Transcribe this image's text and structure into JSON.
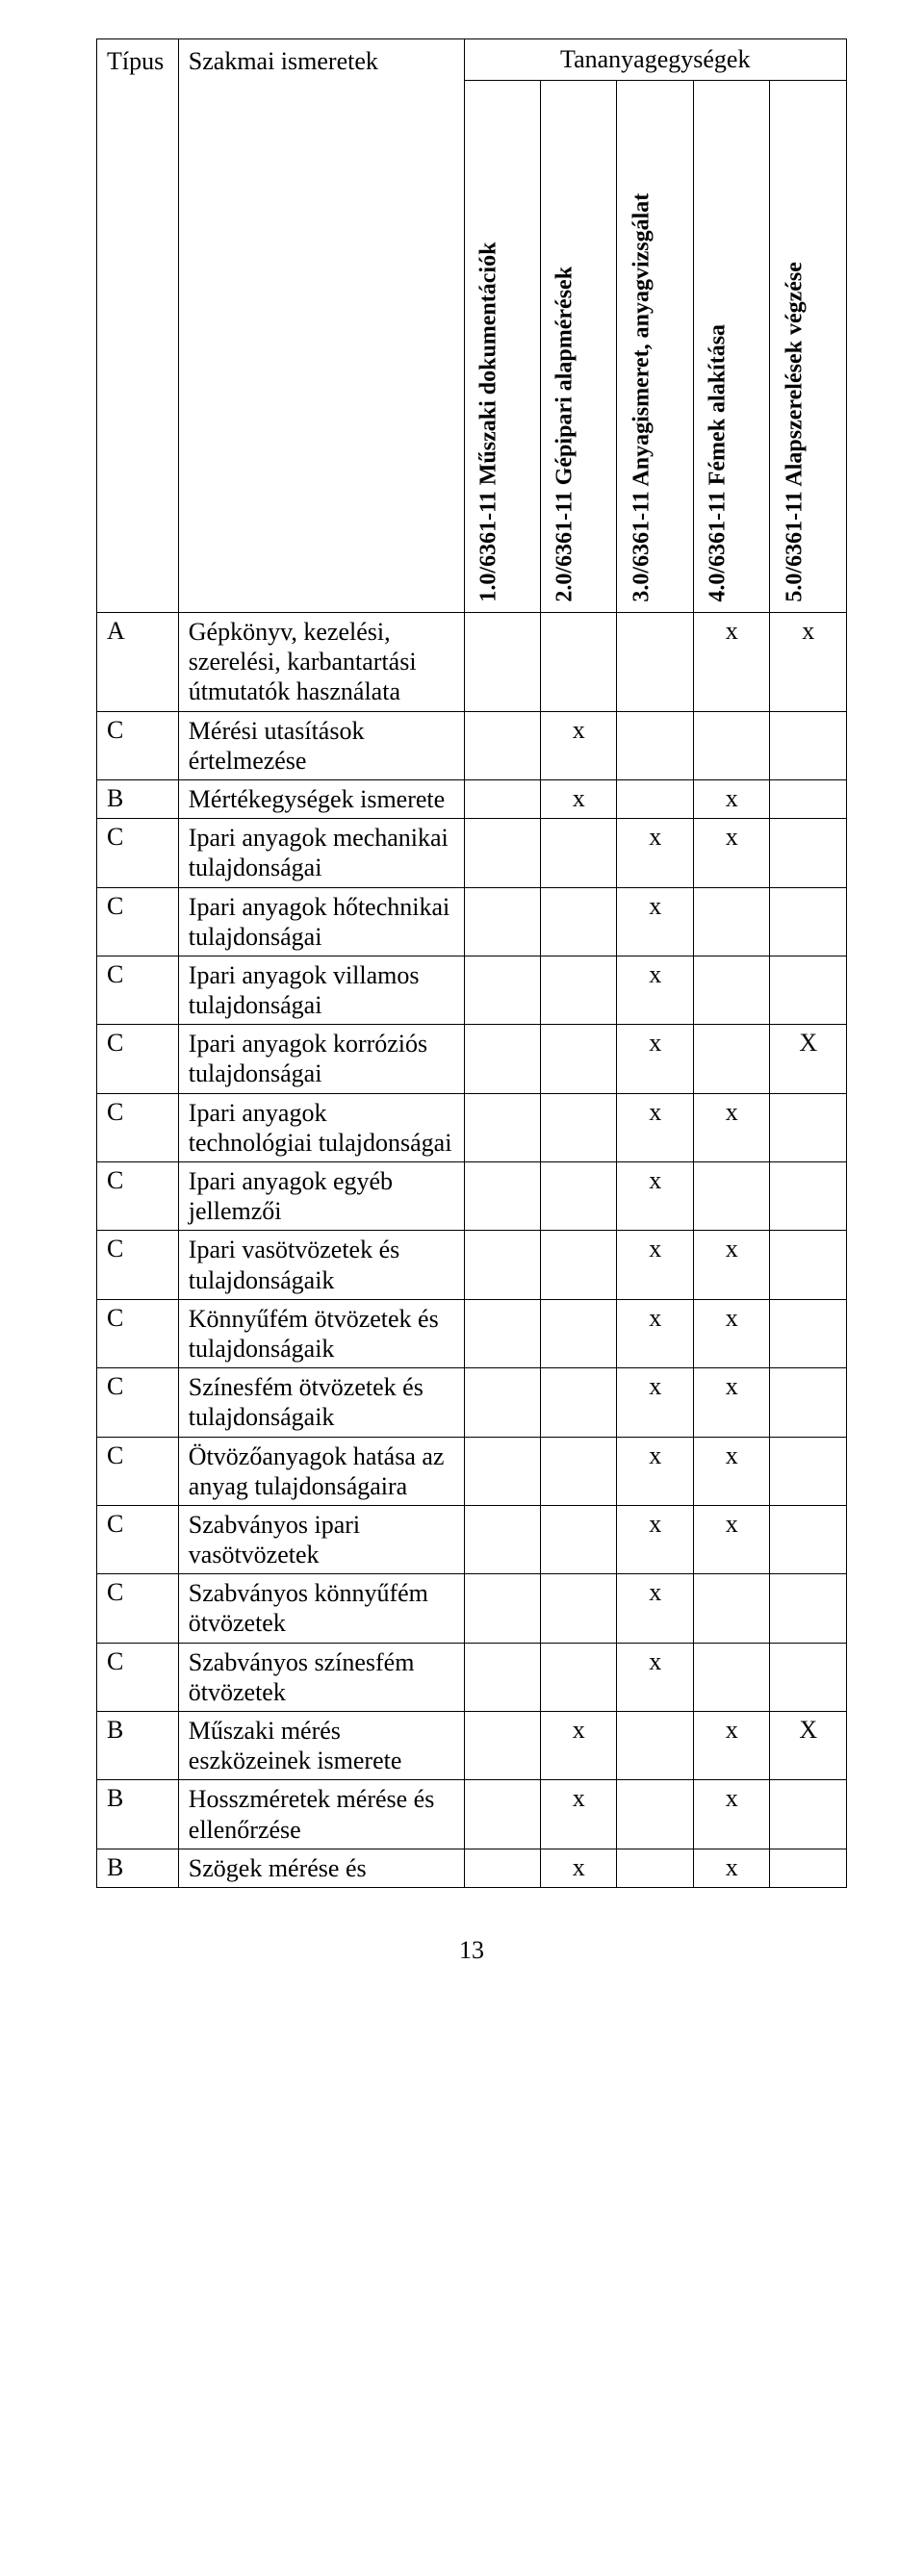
{
  "header_super": "Tananyagegységek",
  "header_type": "Típus",
  "header_desc": "Szakmai ismeretek",
  "units": [
    "1.0/6361-11 Műszaki dokumentációk",
    "2.0/6361-11 Gépipari alapmérések",
    "3.0/6361-11 Anyagismeret, anyagvizsgálat",
    "4.0/6361-11 Fémek alakítása",
    "5.0/6361-11 Alapszerelések végzése"
  ],
  "rows": [
    {
      "type": "A",
      "desc": "Gépkönyv, kezelési, szerelési, karbantartási útmutatók használata",
      "marks": [
        "",
        "",
        "",
        "x",
        "x"
      ]
    },
    {
      "type": "C",
      "desc": "Mérési utasítások értelmezése",
      "marks": [
        "",
        "x",
        "",
        "",
        ""
      ]
    },
    {
      "type": "B",
      "desc": "Mértékegységek ismerete",
      "marks": [
        "",
        "x",
        "",
        "x",
        ""
      ]
    },
    {
      "type": "C",
      "desc": "Ipari anyagok mechanikai tulajdonságai",
      "marks": [
        "",
        "",
        "x",
        "x",
        ""
      ]
    },
    {
      "type": "C",
      "desc": "Ipari anyagok hőtechnikai tulajdonságai",
      "marks": [
        "",
        "",
        "x",
        "",
        ""
      ]
    },
    {
      "type": "C",
      "desc": "Ipari anyagok villamos tulajdonságai",
      "marks": [
        "",
        "",
        "x",
        "",
        ""
      ]
    },
    {
      "type": "C",
      "desc": "Ipari anyagok korróziós tulajdonságai",
      "marks": [
        "",
        "",
        "x",
        "",
        "X"
      ]
    },
    {
      "type": "C",
      "desc": "Ipari anyagok technológiai tulajdonságai",
      "marks": [
        "",
        "",
        "x",
        "x",
        ""
      ]
    },
    {
      "type": "C",
      "desc": "Ipari anyagok egyéb jellemzői",
      "marks": [
        "",
        "",
        "x",
        "",
        ""
      ]
    },
    {
      "type": "C",
      "desc": "Ipari vasötvözetek és tulajdonságaik",
      "marks": [
        "",
        "",
        "x",
        "x",
        ""
      ]
    },
    {
      "type": "C",
      "desc": "Könnyűfém ötvözetek és tulajdonságaik",
      "marks": [
        "",
        "",
        "x",
        "x",
        ""
      ]
    },
    {
      "type": "C",
      "desc": "Színesfém ötvözetek és tulajdonságaik",
      "marks": [
        "",
        "",
        "x",
        "x",
        ""
      ]
    },
    {
      "type": "C",
      "desc": "Ötvözőanyagok hatása az anyag tulajdonságaira",
      "marks": [
        "",
        "",
        "x",
        "x",
        ""
      ]
    },
    {
      "type": "C",
      "desc": "Szabványos ipari vasötvözetek",
      "marks": [
        "",
        "",
        "x",
        "x",
        ""
      ]
    },
    {
      "type": "C",
      "desc": "Szabványos könnyűfém ötvözetek",
      "marks": [
        "",
        "",
        "x",
        "",
        ""
      ]
    },
    {
      "type": "C",
      "desc": "Szabványos színesfém ötvözetek",
      "marks": [
        "",
        "",
        "x",
        "",
        ""
      ]
    },
    {
      "type": "B",
      "desc": "Műszaki mérés eszközeinek ismerete",
      "marks": [
        "",
        "x",
        "",
        "x",
        "X"
      ]
    },
    {
      "type": "B",
      "desc": "Hosszméretek mérése és ellenőrzése",
      "marks": [
        "",
        "x",
        "",
        "x",
        ""
      ]
    },
    {
      "type": "B",
      "desc": "Szögek mérése és",
      "marks": [
        "",
        "x",
        "",
        "x",
        ""
      ]
    }
  ],
  "page_number": "13"
}
